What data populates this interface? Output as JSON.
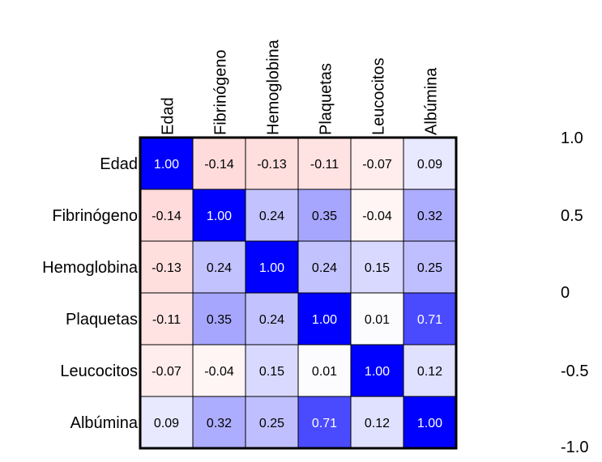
{
  "chart_data": {
    "type": "heatmap",
    "variables": [
      "Edad",
      "Fibrinógeno",
      "Hemoglobina",
      "Plaquetas",
      "Leucocitos",
      "Albúmina"
    ],
    "matrix": [
      [
        1.0,
        -0.14,
        -0.13,
        -0.11,
        -0.07,
        0.09
      ],
      [
        -0.14,
        1.0,
        0.24,
        0.35,
        -0.04,
        0.32
      ],
      [
        -0.13,
        0.24,
        1.0,
        0.24,
        0.15,
        0.25
      ],
      [
        -0.11,
        0.35,
        0.24,
        1.0,
        0.01,
        0.71
      ],
      [
        -0.07,
        -0.04,
        0.15,
        0.01,
        1.0,
        0.12
      ],
      [
        0.09,
        0.32,
        0.25,
        0.71,
        0.12,
        1.0
      ]
    ],
    "value_range": [
      -1.0,
      1.0
    ],
    "colorbar_ticks": [
      "1.0",
      "0.5",
      "0",
      "-0.5",
      "-1.0"
    ],
    "colors": {
      "positive": "#0000ff",
      "negative": "#ff0000",
      "zero": "#ffffff",
      "diagonal_text": "#ffffff",
      "cell_text": "#000000"
    },
    "value_format": "2 decimals"
  }
}
